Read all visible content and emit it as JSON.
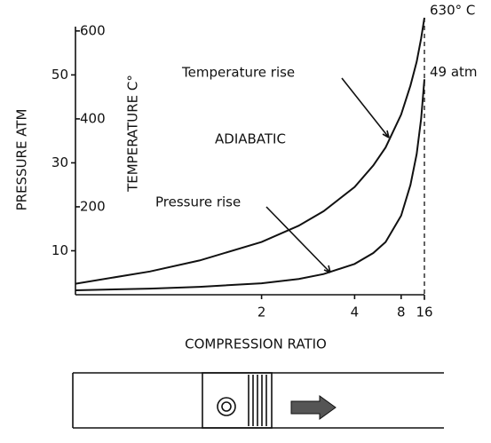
{
  "chart_data": {
    "type": "line",
    "x_scale": "reciprocal",
    "x_label": "COMPRESSION RATIO",
    "y_label": "PRESSURE ATM",
    "y2_label": "TEMPERATURE C°",
    "annotations": [
      "ADIABATIC"
    ],
    "x": [
      1,
      1.25,
      1.5,
      2,
      2.5,
      3,
      4,
      5,
      6,
      8,
      10,
      12,
      14,
      16
    ],
    "xlim": [
      1,
      16
    ],
    "xticks": [
      2,
      4,
      8,
      16
    ],
    "ylim": [
      0,
      63
    ],
    "yticks": [
      10,
      30,
      50
    ],
    "y2lim": [
      0,
      630
    ],
    "y2ticks": [
      200,
      400,
      600
    ],
    "series": [
      {
        "name": "Temperature rise",
        "color": "#111111",
        "axis": "y2",
        "values": [
          25,
          53,
          78,
          120,
          157,
          190,
          245,
          294,
          335,
          410,
          476,
          530,
          583,
          630
        ],
        "value_labels": [
          null,
          null,
          null,
          null,
          null,
          null,
          null,
          null,
          null,
          null,
          null,
          null,
          null,
          "630° C"
        ]
      },
      {
        "name": "Pressure rise",
        "color": "#111111",
        "values": [
          1,
          1.4,
          1.8,
          2.6,
          3.6,
          4.7,
          7,
          9.5,
          12,
          18,
          25,
          32,
          40,
          49
        ],
        "value_labels": [
          null,
          null,
          null,
          null,
          null,
          null,
          null,
          null,
          null,
          null,
          null,
          null,
          null,
          "49 atm"
        ]
      }
    ]
  }
}
